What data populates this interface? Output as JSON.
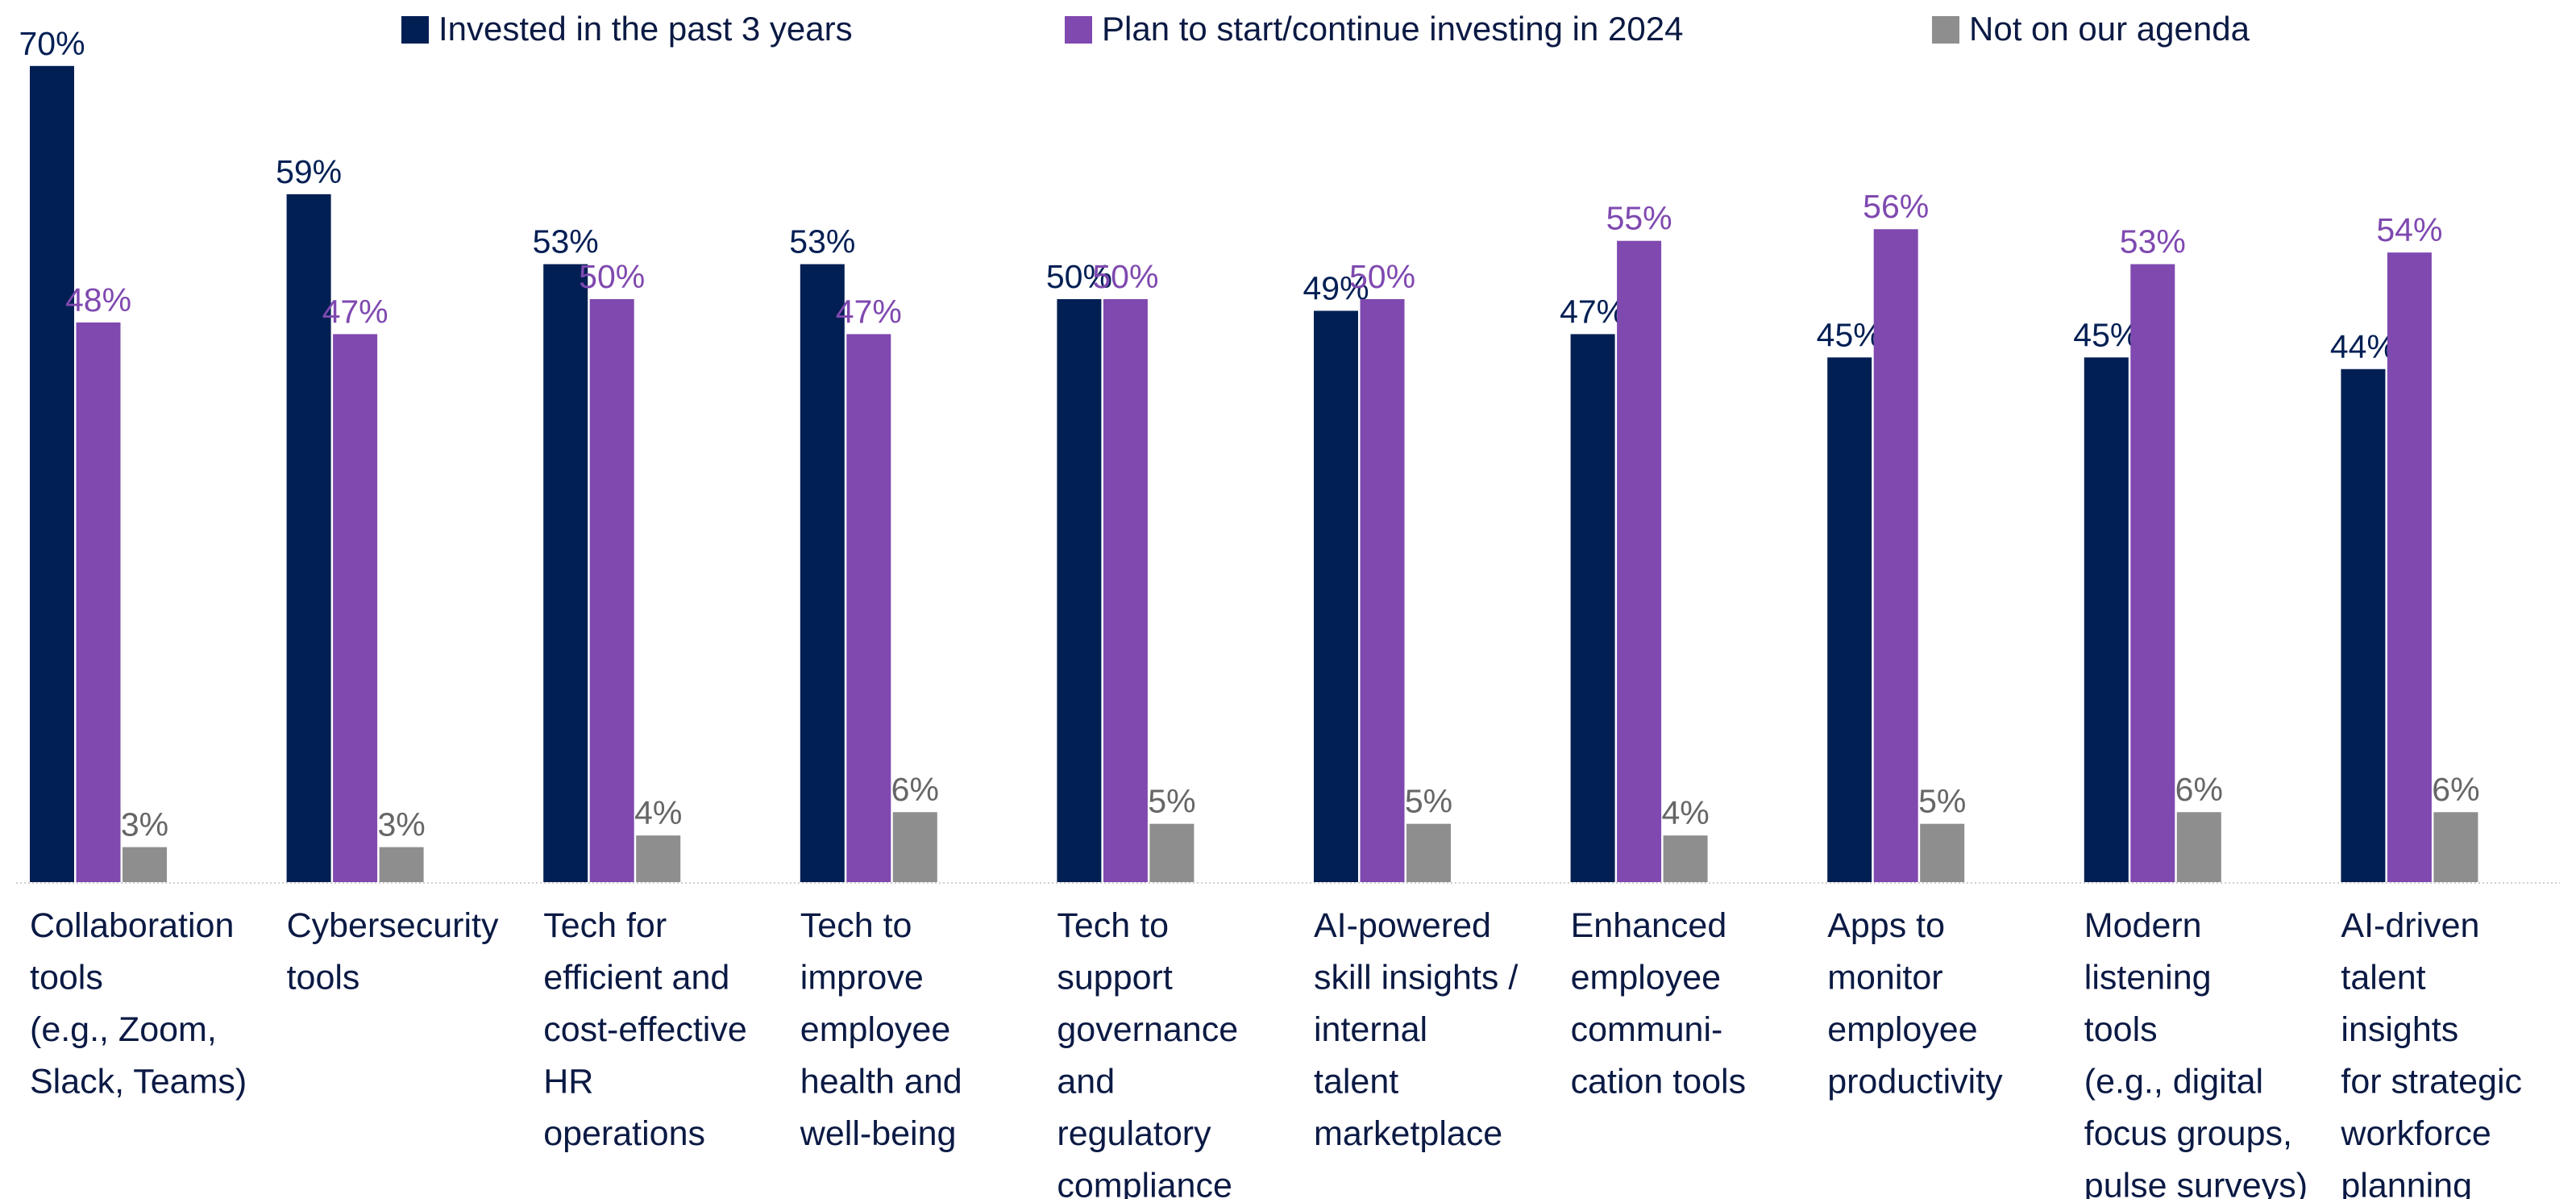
{
  "chart_data": {
    "type": "bar",
    "categories": [
      [
        "Collaboration",
        "tools",
        "(e.g., Zoom,",
        "Slack, Teams)"
      ],
      [
        "Cybersecurity",
        "tools"
      ],
      [
        "Tech for",
        "efficient and",
        "cost-effective",
        "HR",
        "operations"
      ],
      [
        "Tech to",
        "improve",
        "employee",
        "health and",
        "well-being"
      ],
      [
        "Tech to",
        "support",
        "governance",
        "and",
        "regulatory",
        "compliance"
      ],
      [
        "AI-powered",
        "skill insights /",
        "internal",
        "talent",
        "marketplace"
      ],
      [
        "Enhanced",
        "employee",
        "communi-",
        "cation tools"
      ],
      [
        "Apps to",
        "monitor",
        "employee",
        "productivity"
      ],
      [
        "Modern",
        "listening",
        "tools",
        "(e.g., digital",
        "focus groups,",
        "pulse surveys)"
      ],
      [
        "AI-driven",
        "talent",
        "insights",
        "for strategic",
        "workforce",
        "planning"
      ]
    ],
    "series": [
      {
        "name": "Invested in the past 3 years",
        "color": "#021f54",
        "label_color": "#021f54",
        "values": [
          70,
          59,
          53,
          53,
          50,
          49,
          47,
          45,
          45,
          44
        ],
        "value_labels": [
          "70%",
          "59%",
          "53%",
          "53%",
          "50%",
          "49%",
          "47%",
          "45%",
          "45%",
          "44%"
        ]
      },
      {
        "name": "Plan to start/continue investing in 2024",
        "color": "#7f49b0",
        "label_color": "#7f49b0",
        "values": [
          48,
          47,
          50,
          47,
          50,
          50,
          55,
          56,
          53,
          54
        ],
        "value_labels": [
          "48%",
          "47%",
          "50%",
          "47%",
          "50%",
          "50%",
          "55%",
          "56%",
          "53%",
          "54%"
        ]
      },
      {
        "name": "Not on our agenda",
        "color": "#8e8e8e",
        "label_color": "#666666",
        "values": [
          3,
          3,
          4,
          6,
          5,
          5,
          4,
          5,
          6,
          6
        ],
        "value_labels": [
          "3%",
          "3%",
          "4%",
          "6%",
          "5%",
          "5%",
          "4%",
          "5%",
          "6%",
          "6%"
        ]
      }
    ]
  }
}
